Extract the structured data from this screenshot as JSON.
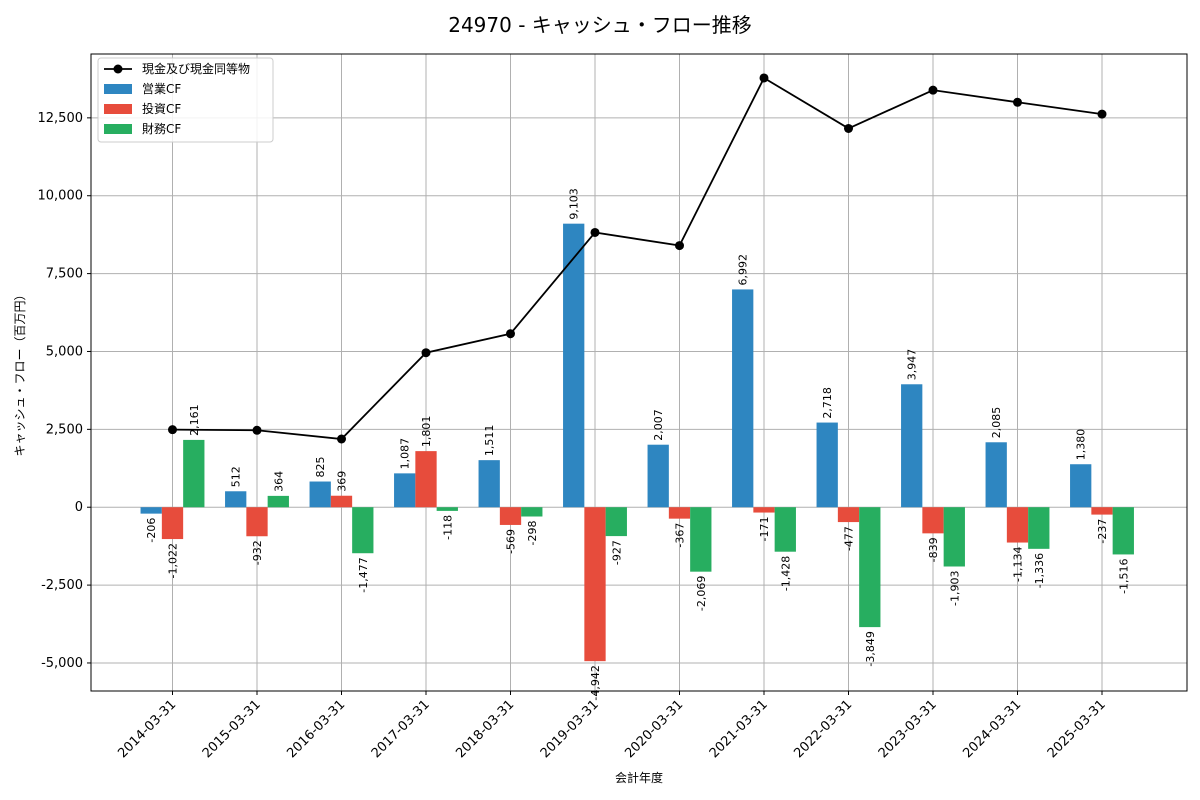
{
  "chart_data": {
    "type": "bar",
    "title": "24970 - キャッシュ・フロー推移",
    "xlabel": "会計年度",
    "ylabel": "キャッシュ・フロー（百万円）",
    "categories": [
      "2014-03-31",
      "2015-03-31",
      "2016-03-31",
      "2017-03-31",
      "2018-03-31",
      "2019-03-31",
      "2020-03-31",
      "2021-03-31",
      "2022-03-31",
      "2023-03-31",
      "2024-03-31",
      "2025-03-31"
    ],
    "series": [
      {
        "name": "営業CF",
        "kind": "bar",
        "color": "#2e86c1",
        "values": [
          -206,
          512,
          825,
          1087,
          1511,
          9103,
          2007,
          6992,
          2718,
          3947,
          2085,
          1380
        ]
      },
      {
        "name": "投資CF",
        "kind": "bar",
        "color": "#e74c3c",
        "values": [
          -1022,
          -932,
          369,
          1801,
          -569,
          -4942,
          -367,
          -171,
          -477,
          -839,
          -1134,
          -237
        ]
      },
      {
        "name": "財務CF",
        "kind": "bar",
        "color": "#27ae60",
        "values": [
          2161,
          364,
          -1477,
          -118,
          -298,
          -927,
          -2069,
          -1428,
          -3849,
          -1903,
          -1336,
          -1516
        ]
      },
      {
        "name": "現金及び現金同等物",
        "kind": "line",
        "color": "#000000",
        "values": [
          2490,
          2470,
          2190,
          4960,
          5570,
          8820,
          8400,
          13780,
          12160,
          13390,
          13000,
          12620
        ]
      }
    ],
    "yticks": [
      "-5,000",
      "-2,500",
      "0",
      "2,500",
      "5,000",
      "7,500",
      "10,000",
      "12,500"
    ],
    "ylim": [
      -5900,
      14550
    ],
    "grid": true,
    "legend_position": "top-left"
  }
}
